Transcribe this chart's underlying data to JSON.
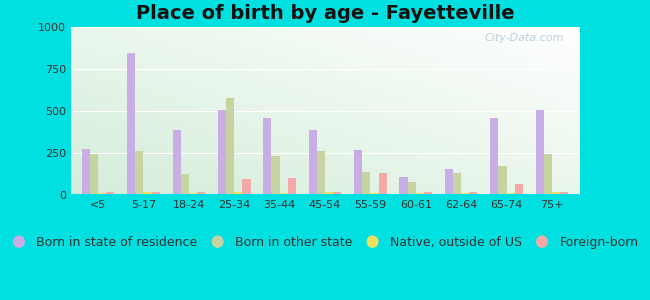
{
  "title": "Place of birth by age - Fayetteville",
  "categories": [
    "<5",
    "5-17",
    "18-24",
    "25-34",
    "35-44",
    "45-54",
    "55-59",
    "60-61",
    "62-64",
    "65-74",
    "75+"
  ],
  "series": {
    "Born in state of residence": [
      275,
      850,
      390,
      505,
      460,
      390,
      270,
      110,
      155,
      460,
      510
    ],
    "Born in other state": [
      245,
      265,
      125,
      580,
      230,
      260,
      140,
      80,
      130,
      175,
      245
    ],
    "Native, outside of US": [
      10,
      15,
      10,
      15,
      10,
      15,
      10,
      10,
      10,
      10,
      15
    ],
    "Foreign-born": [
      20,
      20,
      15,
      95,
      100,
      20,
      130,
      15,
      15,
      65,
      20
    ]
  },
  "colors": {
    "Born in state of residence": "#c9aee5",
    "Born in other state": "#c5d4a0",
    "Native, outside of US": "#f0e060",
    "Foreign-born": "#f4a8a8"
  },
  "ylim": [
    0,
    1000
  ],
  "yticks": [
    0,
    250,
    500,
    750,
    1000
  ],
  "background_color": "#00e0e0",
  "title_fontsize": 14,
  "tick_fontsize": 8,
  "legend_fontsize": 9,
  "bar_width": 0.18
}
